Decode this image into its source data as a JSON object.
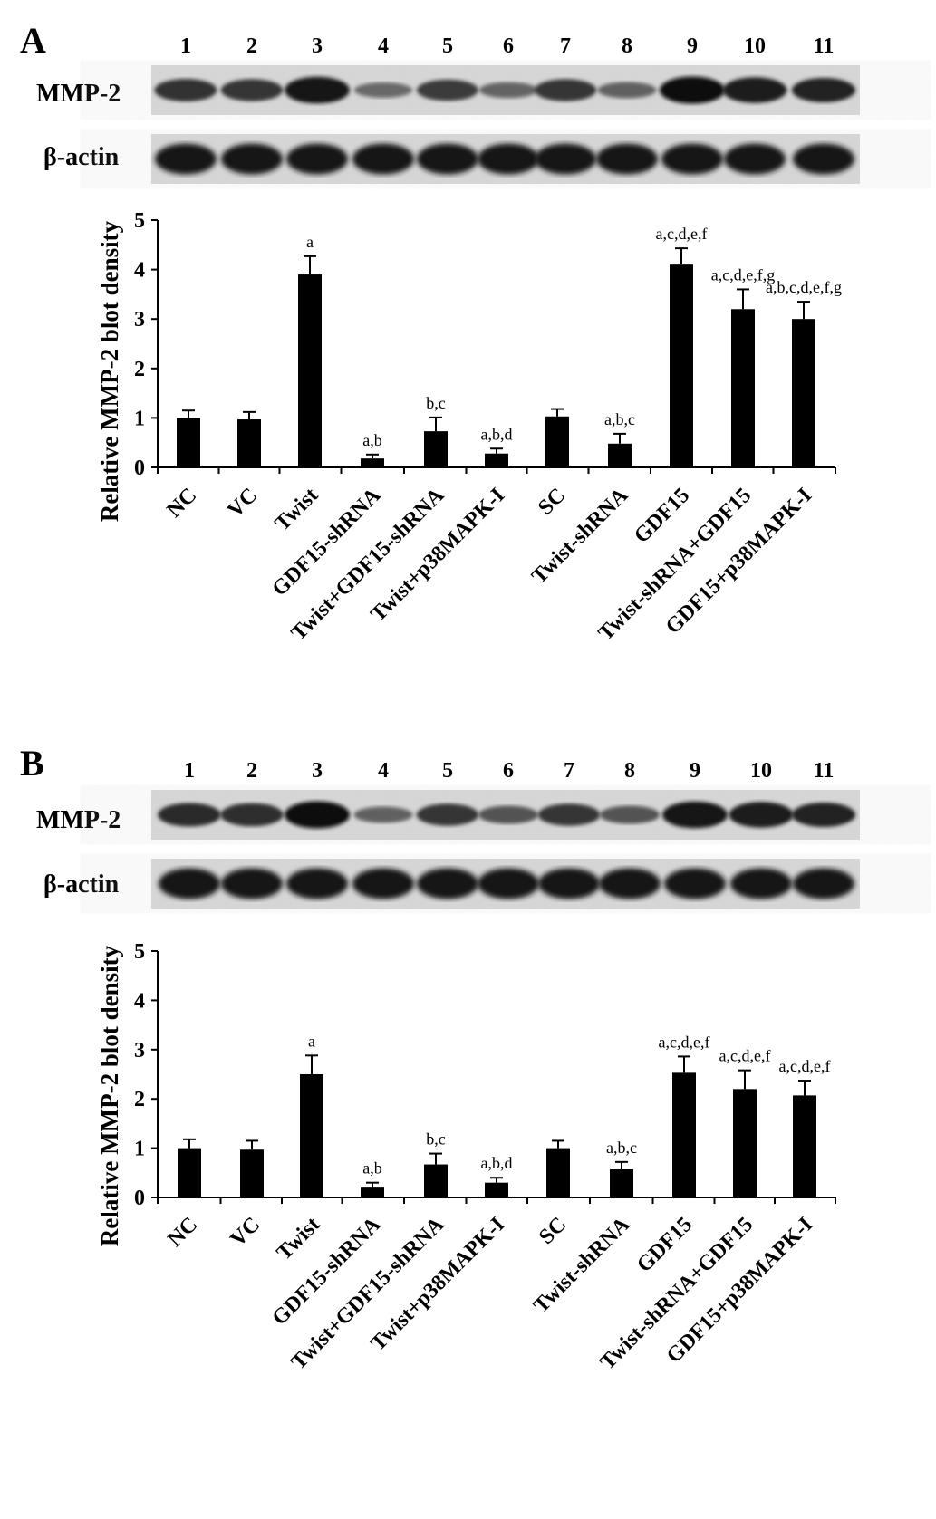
{
  "chart_data": [
    {
      "panel": "A",
      "type": "bar",
      "lanes": [
        "1",
        "2",
        "3",
        "4",
        "5",
        "6",
        "7",
        "8",
        "9",
        "10",
        "11"
      ],
      "blot_labels": [
        "MMP-2",
        "β-actin"
      ],
      "band_intensity_mmp2": [
        0.75,
        0.72,
        0.98,
        0.35,
        0.68,
        0.38,
        0.72,
        0.4,
        1.0,
        0.92,
        0.85
      ],
      "categories": [
        "NC",
        "VC",
        "Twist",
        "GDF15-shRNA",
        "Twist+GDF15-shRNA",
        "Twist+p38MAPK-I",
        "SC",
        "Twist-shRNA",
        "GDF15",
        "Twist-shRNA+GDF15",
        "GDF15+p38MAPK-I"
      ],
      "values": [
        1.0,
        0.97,
        3.9,
        0.18,
        0.73,
        0.28,
        1.03,
        0.48,
        4.1,
        3.2,
        3.0
      ],
      "errors": [
        0.15,
        0.15,
        0.37,
        0.08,
        0.28,
        0.1,
        0.15,
        0.2,
        0.33,
        0.4,
        0.35
      ],
      "annotations": [
        "",
        "",
        "a",
        "a,b",
        "b,c",
        "a,b,d",
        "",
        "a,b,c",
        "a,c,d,e,f",
        "a,c,d,e,f,g",
        "a,b,c,d,e,f,g"
      ],
      "ylabel": "Relative MMP-2 blot density",
      "ylim": [
        0,
        5
      ],
      "yticks": [
        0,
        1,
        2,
        3,
        4,
        5
      ],
      "bar_color": "#000000"
    },
    {
      "panel": "B",
      "type": "bar",
      "lanes": [
        "1",
        "2",
        "3",
        "4",
        "5",
        "6",
        "7",
        "8",
        "9",
        "10",
        "11"
      ],
      "blot_labels": [
        "MMP-2",
        "β-actin"
      ],
      "band_intensity_mmp2": [
        0.8,
        0.78,
        1.0,
        0.4,
        0.72,
        0.5,
        0.72,
        0.5,
        0.98,
        0.92,
        0.85
      ],
      "categories": [
        "NC",
        "VC",
        "Twist",
        "GDF15-shRNA",
        "Twist+GDF15-shRNA",
        "Twist+p38MAPK-I",
        "SC",
        "Twist-shRNA",
        "GDF15",
        "Twist-shRNA+GDF15",
        "GDF15+p38MAPK-I"
      ],
      "values": [
        1.0,
        0.97,
        2.5,
        0.2,
        0.67,
        0.3,
        1.0,
        0.57,
        2.53,
        2.2,
        2.07
      ],
      "errors": [
        0.18,
        0.18,
        0.38,
        0.1,
        0.22,
        0.1,
        0.15,
        0.15,
        0.33,
        0.38,
        0.3
      ],
      "annotations": [
        "",
        "",
        "a",
        "a,b",
        "b,c",
        "a,b,d",
        "",
        "a,b,c",
        "a,c,d,e,f",
        "a,c,d,e,f",
        "a,c,d,e,f"
      ],
      "ylabel": "Relative MMP-2 blot density",
      "ylim": [
        0,
        5
      ],
      "yticks": [
        0,
        1,
        2,
        3,
        4,
        5
      ],
      "bar_color": "#000000"
    }
  ]
}
